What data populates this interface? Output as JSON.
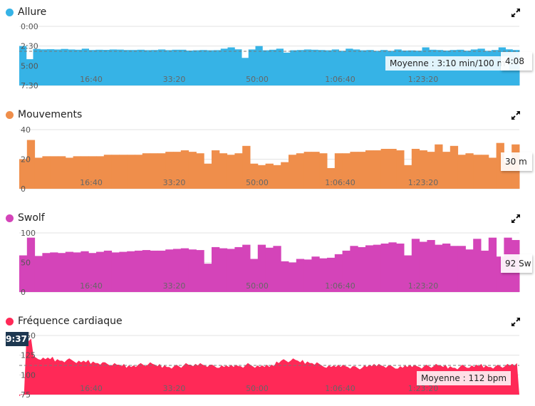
{
  "x_ticks": [
    "16:40",
    "33:20",
    "50:00",
    "1:06:40",
    "1:23:20"
  ],
  "x_tick_seconds": [
    1000,
    2000,
    3000,
    4000,
    5000
  ],
  "charts": [
    {
      "title": "Allure",
      "color": "#36b3e6",
      "yticks": [
        "0:00",
        "2:30",
        "5:00",
        "7:30"
      ],
      "ytick_values": [
        0,
        150,
        300,
        450
      ],
      "ylim": [
        0,
        450
      ],
      "inverted": true,
      "type": "bar",
      "average": 190,
      "average_label": "Moyenne : 3:10 min/100 m",
      "tooltip": "4:08",
      "values": [
        150,
        250,
        172,
        175,
        174,
        176,
        172,
        176,
        178,
        170,
        180,
        178,
        179,
        176,
        177,
        180,
        180,
        178,
        181,
        180,
        176,
        181,
        178,
        178,
        184,
        182,
        180,
        182,
        181,
        170,
        160,
        175,
        240,
        176,
        150,
        182,
        178,
        170,
        200,
        182,
        180,
        176,
        178,
        180,
        182,
        176,
        186,
        170,
        176,
        182,
        180,
        186,
        180,
        186,
        176,
        184,
        183,
        185,
        160,
        178,
        180,
        184,
        180,
        178,
        185,
        176,
        170,
        186,
        180,
        160,
        175,
        180
      ]
    },
    {
      "title": "Mouvements",
      "color": "#ef8e4b",
      "yticks": [
        "40",
        "20",
        "0"
      ],
      "ytick_values": [
        40,
        20,
        0
      ],
      "ylim": [
        0,
        40
      ],
      "type": "bar",
      "tooltip": "30 m",
      "values": [
        20,
        33,
        21,
        22,
        22,
        22,
        21,
        22,
        22,
        22,
        22,
        23,
        23,
        23,
        23,
        23,
        24,
        24,
        24,
        25,
        25,
        26,
        25,
        24,
        17,
        26,
        24,
        23,
        24,
        29,
        17,
        16,
        17,
        16,
        18,
        23,
        24,
        25,
        25,
        24,
        14,
        24,
        24,
        25,
        25,
        26,
        26,
        27,
        27,
        26,
        16,
        27,
        26,
        25,
        30,
        25,
        29,
        23,
        24,
        23,
        23,
        21,
        31,
        18,
        30
      ]
    },
    {
      "title": "Swolf",
      "color": "#d444b9",
      "yticks": [
        "100",
        "50",
        "0"
      ],
      "ytick_values": [
        100,
        50,
        0
      ],
      "ylim": [
        0,
        100
      ],
      "type": "bar",
      "tooltip": "92 Sw",
      "values": [
        62,
        92,
        61,
        66,
        67,
        66,
        68,
        67,
        69,
        66,
        68,
        70,
        67,
        68,
        69,
        70,
        71,
        70,
        70,
        72,
        73,
        74,
        72,
        71,
        48,
        76,
        74,
        73,
        76,
        80,
        56,
        80,
        75,
        78,
        52,
        50,
        56,
        55,
        60,
        57,
        58,
        64,
        70,
        78,
        76,
        79,
        80,
        82,
        84,
        82,
        62,
        90,
        85,
        88,
        80,
        82,
        78,
        78,
        72,
        90,
        70,
        92,
        60,
        92,
        88
      ]
    },
    {
      "title": "Fréquence cardiaque",
      "color": "#ff2957",
      "yticks": [
        "150",
        "125",
        "100",
        "75"
      ],
      "ytick_values": [
        150,
        125,
        100,
        75
      ],
      "ylim": [
        75,
        150
      ],
      "type": "area",
      "average": 112,
      "average_label": "Moyenne : 112 bpm",
      "tooltip": "9:37",
      "values": [
        75,
        145,
        122,
        120,
        121,
        119,
        118,
        119,
        116,
        117,
        116,
        115,
        114,
        113,
        112,
        111,
        112,
        113,
        114,
        112,
        111,
        110,
        111,
        113,
        112,
        114,
        112,
        111,
        110,
        111,
        112,
        111,
        113,
        110,
        111,
        112,
        117,
        118,
        119,
        117,
        116,
        115,
        112,
        110,
        111,
        112,
        110,
        109,
        110,
        112,
        113,
        111,
        110,
        109,
        111,
        112,
        110,
        111,
        112,
        111,
        110,
        109,
        111,
        110,
        112,
        111,
        110,
        111,
        112,
        113
      ]
    }
  ]
}
